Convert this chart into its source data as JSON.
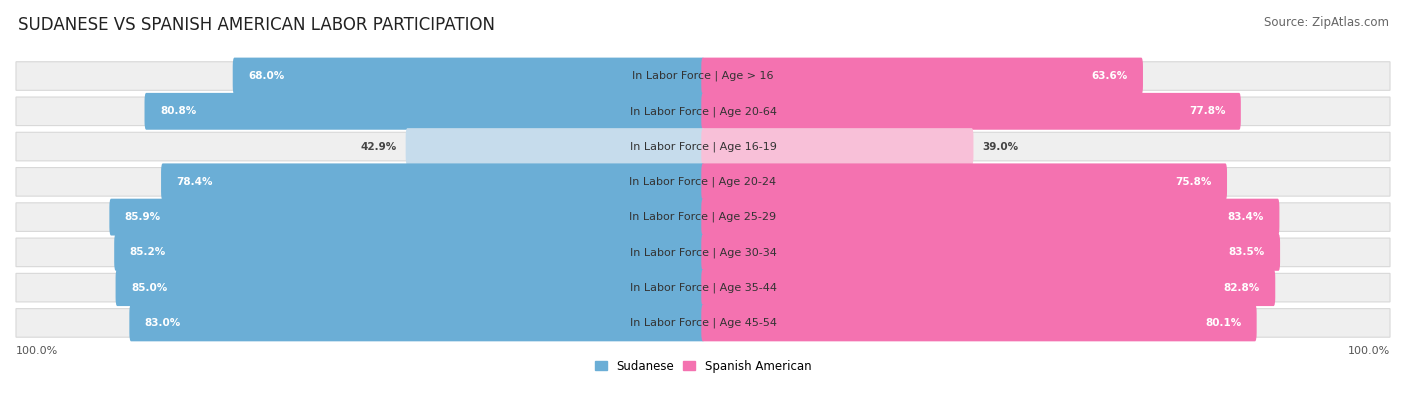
{
  "title": "SUDANESE VS SPANISH AMERICAN LABOR PARTICIPATION",
  "source": "Source: ZipAtlas.com",
  "categories": [
    "In Labor Force | Age > 16",
    "In Labor Force | Age 20-64",
    "In Labor Force | Age 16-19",
    "In Labor Force | Age 20-24",
    "In Labor Force | Age 25-29",
    "In Labor Force | Age 30-34",
    "In Labor Force | Age 35-44",
    "In Labor Force | Age 45-54"
  ],
  "sudanese": [
    68.0,
    80.8,
    42.9,
    78.4,
    85.9,
    85.2,
    85.0,
    83.0
  ],
  "spanish_american": [
    63.6,
    77.8,
    39.0,
    75.8,
    83.4,
    83.5,
    82.8,
    80.1
  ],
  "sudanese_color": "#6BAED6",
  "sudanese_color_light": "#C6DCEC",
  "spanish_color": "#F472B0",
  "spanish_color_light": "#F8C0D8",
  "row_bg": "#EFEFEF",
  "max_value": 100.0,
  "legend_sudanese": "Sudanese",
  "legend_spanish": "Spanish American",
  "title_fontsize": 12,
  "source_fontsize": 8.5,
  "cat_label_fontsize": 8,
  "bar_label_fontsize": 7.5,
  "axis_label_fontsize": 8
}
